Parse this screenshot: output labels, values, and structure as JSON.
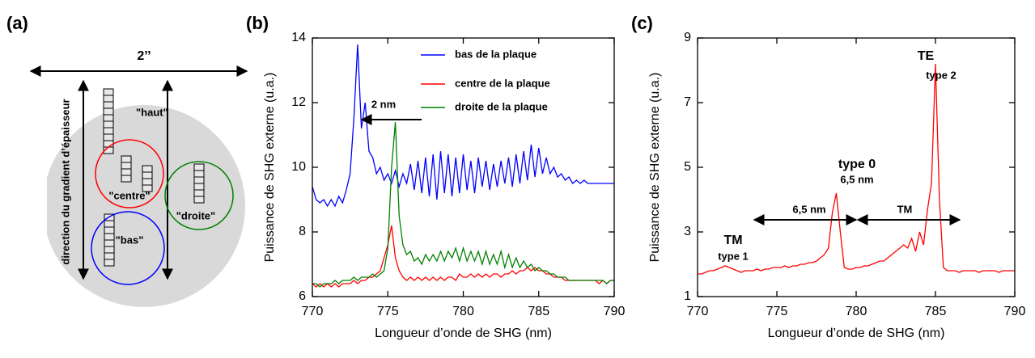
{
  "diagram": {
    "label": "(a)",
    "width_label": "2’’",
    "gradient_label": "direction du gradient d’épaisseur",
    "zones": [
      "\"haut\"",
      "\"centre\"",
      "\"bas\"",
      "\"droite\""
    ]
  },
  "chart_data": [
    {
      "type": "line",
      "panel_label": "(b)",
      "x_label": "Longueur d’onde de SHG (nm)",
      "y_label": "Puissance de SHG externe (u.a.)",
      "xlim": [
        770,
        790
      ],
      "xticks": [
        770,
        775,
        780,
        785,
        790
      ],
      "ylim": [
        6,
        14
      ],
      "yticks": [
        6,
        8,
        10,
        12,
        14
      ],
      "annotations": [
        "2 nm"
      ],
      "x": [
        770,
        770.25,
        770.5,
        770.75,
        771,
        771.25,
        771.5,
        771.75,
        772,
        772.25,
        772.5,
        772.75,
        773,
        773.25,
        773.5,
        773.75,
        774,
        774.25,
        774.5,
        774.75,
        775,
        775.25,
        775.5,
        775.75,
        776,
        776.25,
        776.5,
        776.75,
        777,
        777.25,
        777.5,
        777.75,
        778,
        778.25,
        778.5,
        778.75,
        779,
        779.25,
        779.5,
        779.75,
        780,
        780.25,
        780.5,
        780.75,
        781,
        781.25,
        781.5,
        781.75,
        782,
        782.25,
        782.5,
        782.75,
        783,
        783.25,
        783.5,
        783.75,
        784,
        784.25,
        784.5,
        784.75,
        785,
        785.25,
        785.5,
        785.75,
        786,
        786.25,
        786.5,
        786.75,
        787,
        787.25,
        787.5,
        787.75,
        788,
        788.25,
        788.5,
        788.75,
        789,
        789.25,
        789.5,
        789.75,
        790
      ],
      "series": [
        {
          "name": "bas de la plaque",
          "color": "#0000ff",
          "values": [
            9.4,
            9.0,
            8.9,
            9.0,
            8.8,
            9.0,
            8.8,
            9.1,
            8.9,
            9.3,
            9.8,
            11.5,
            13.8,
            11.2,
            12.0,
            10.5,
            10.3,
            9.8,
            10.0,
            9.6,
            9.8,
            9.5,
            9.9,
            9.4,
            9.8,
            9.5,
            10.1,
            9.3,
            10.2,
            9.2,
            10.3,
            9.1,
            10.4,
            9.0,
            10.5,
            9.2,
            10.4,
            9.1,
            10.3,
            9.2,
            10.4,
            9.3,
            10.2,
            9.2,
            10.3,
            9.4,
            10.2,
            9.3,
            10.1,
            9.4,
            10.2,
            9.5,
            10.3,
            9.4,
            10.4,
            9.5,
            10.5,
            9.6,
            10.7,
            9.7,
            10.6,
            9.8,
            10.3,
            9.8,
            10.0,
            9.7,
            9.8,
            9.6,
            9.7,
            9.5,
            9.6,
            9.5,
            9.6,
            9.5,
            9.5,
            9.5,
            9.5,
            9.5,
            9.5,
            9.5,
            9.5
          ]
        },
        {
          "name": "centre de la plaque",
          "color": "#ff0000",
          "values": [
            6.4,
            6.3,
            6.4,
            6.3,
            6.4,
            6.3,
            6.4,
            6.3,
            6.4,
            6.4,
            6.4,
            6.5,
            6.4,
            6.5,
            6.5,
            6.6,
            6.6,
            6.7,
            6.8,
            7.2,
            7.6,
            8.2,
            7.2,
            6.8,
            6.6,
            6.5,
            6.6,
            6.5,
            6.6,
            6.5,
            6.6,
            6.5,
            6.6,
            6.5,
            6.6,
            6.5,
            6.6,
            6.6,
            6.5,
            6.7,
            6.6,
            6.6,
            6.7,
            6.6,
            6.7,
            6.6,
            6.7,
            6.6,
            6.7,
            6.7,
            6.6,
            6.7,
            6.7,
            6.8,
            6.7,
            6.8,
            6.8,
            6.9,
            6.8,
            6.9,
            6.8,
            6.8,
            6.7,
            6.7,
            6.6,
            6.6,
            6.6,
            6.5,
            6.5,
            6.5,
            6.5,
            6.5,
            6.5,
            6.5,
            6.5,
            6.5,
            6.4,
            6.5,
            6.4,
            6.5,
            6.5
          ]
        },
        {
          "name": "droite de la plaque",
          "color": "#008000",
          "values": [
            6.4,
            6.4,
            6.3,
            6.4,
            6.4,
            6.4,
            6.5,
            6.4,
            6.5,
            6.5,
            6.5,
            6.6,
            6.5,
            6.6,
            6.6,
            6.6,
            6.7,
            6.6,
            6.7,
            6.8,
            7.5,
            10.0,
            11.4,
            8.5,
            7.6,
            7.3,
            7.4,
            7.1,
            7.2,
            7.0,
            7.3,
            7.1,
            7.3,
            7.1,
            7.4,
            7.1,
            7.4,
            7.2,
            7.5,
            7.1,
            7.5,
            7.1,
            7.4,
            7.1,
            7.4,
            7.0,
            7.4,
            7.0,
            7.3,
            7.0,
            7.4,
            6.9,
            7.3,
            6.9,
            7.2,
            6.9,
            7.1,
            6.9,
            7.0,
            6.8,
            6.9,
            6.8,
            6.8,
            6.7,
            6.7,
            6.6,
            6.6,
            6.6,
            6.5,
            6.5,
            6.5,
            6.5,
            6.5,
            6.5,
            6.5,
            6.5,
            6.5,
            6.5,
            6.4,
            6.5,
            6.5
          ]
        }
      ]
    },
    {
      "type": "line",
      "panel_label": "(c)",
      "x_label": "Longueur d’onde de SHG (nm)",
      "y_label": "Puissance de SHG externe (u.a.)",
      "xlim": [
        770,
        790
      ],
      "xticks": [
        770,
        775,
        780,
        785,
        790
      ],
      "ylim": [
        1,
        9
      ],
      "yticks": [
        1,
        3,
        5,
        7,
        9
      ],
      "annotations": [
        "TM",
        "type 1",
        "6,5 nm",
        "TM",
        "type 0",
        "6,5 nm",
        "TE",
        "type 2"
      ],
      "x": [
        770,
        770.25,
        770.5,
        770.75,
        771,
        771.25,
        771.5,
        771.75,
        772,
        772.25,
        772.5,
        772.75,
        773,
        773.25,
        773.5,
        773.75,
        774,
        774.25,
        774.5,
        774.75,
        775,
        775.25,
        775.5,
        775.75,
        776,
        776.25,
        776.5,
        776.75,
        777,
        777.25,
        777.5,
        777.75,
        778,
        778.25,
        778.5,
        778.75,
        779,
        779.25,
        779.5,
        779.75,
        780,
        780.25,
        780.5,
        780.75,
        781,
        781.25,
        781.5,
        781.75,
        782,
        782.25,
        782.5,
        782.75,
        783,
        783.25,
        783.5,
        783.75,
        784,
        784.25,
        784.5,
        784.75,
        785,
        785.25,
        785.5,
        785.75,
        786,
        786.25,
        786.5,
        786.75,
        787,
        787.25,
        787.5,
        787.75,
        788,
        788.25,
        788.5,
        788.75,
        789,
        789.25,
        789.5,
        789.75,
        790
      ],
      "series": [
        {
          "color": "#ff0000",
          "values": [
            1.7,
            1.7,
            1.75,
            1.8,
            1.8,
            1.85,
            1.9,
            1.95,
            1.9,
            1.85,
            1.8,
            1.75,
            1.8,
            1.8,
            1.8,
            1.85,
            1.8,
            1.85,
            1.85,
            1.9,
            1.9,
            1.9,
            1.95,
            1.9,
            1.95,
            1.95,
            2.0,
            2.0,
            2.05,
            2.05,
            2.1,
            2.2,
            2.3,
            2.5,
            3.6,
            4.2,
            3.0,
            1.9,
            1.85,
            1.85,
            1.9,
            1.9,
            1.95,
            1.95,
            2.0,
            2.05,
            2.1,
            2.1,
            2.2,
            2.3,
            2.4,
            2.5,
            2.6,
            2.5,
            2.8,
            2.4,
            3.0,
            2.6,
            3.7,
            4.5,
            8.2,
            4.0,
            1.9,
            1.8,
            1.8,
            1.8,
            1.75,
            1.8,
            1.8,
            1.8,
            1.8,
            1.75,
            1.8,
            1.8,
            1.8,
            1.8,
            1.75,
            1.8,
            1.8,
            1.8,
            1.8
          ]
        }
      ]
    }
  ]
}
